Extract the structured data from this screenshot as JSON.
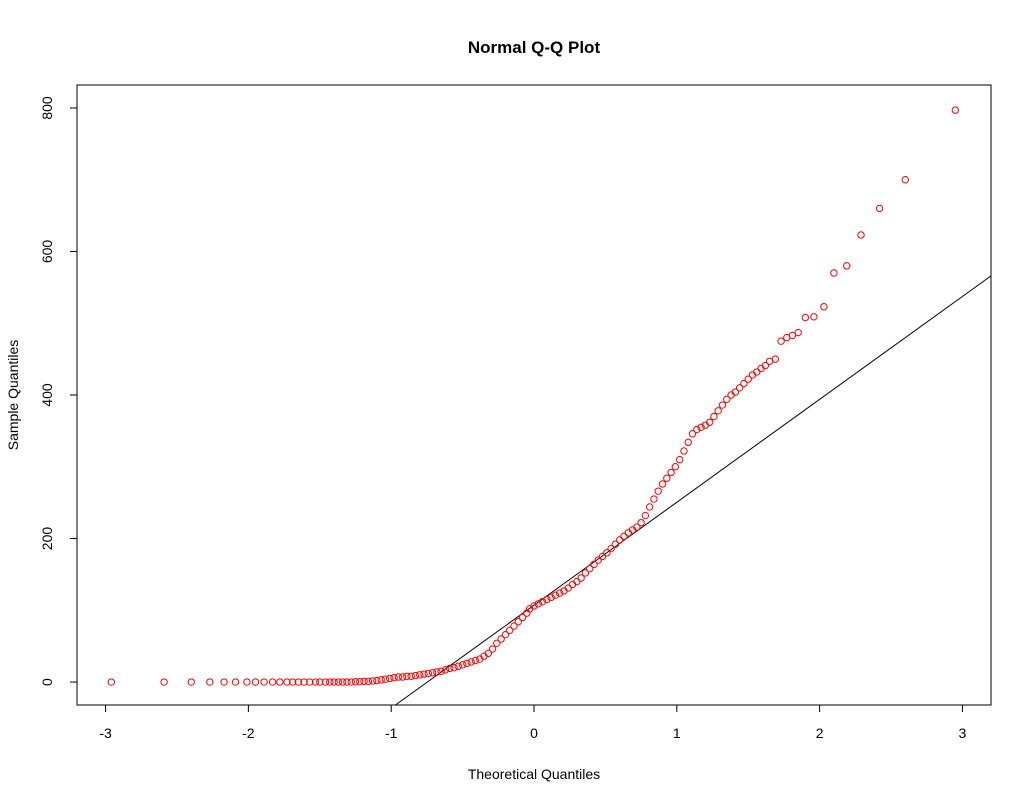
{
  "chart_data": {
    "type": "scatter",
    "title": "Normal Q-Q Plot",
    "xlabel": "Theoretical Quantiles",
    "ylabel": "Sample Quantiles",
    "xlim": [
      -3.2,
      3.2
    ],
    "ylim": [
      -32,
      832
    ],
    "xticks": [
      -3,
      -2,
      -1,
      0,
      1,
      2,
      3
    ],
    "yticks": [
      0,
      200,
      400,
      600,
      800
    ],
    "point_color": "#FF0000",
    "line_color": "#000000",
    "grid": false,
    "legend": "none",
    "reference_line": {
      "x": [
        -0.97,
        3.2
      ],
      "y": [
        -32,
        566
      ]
    },
    "series": [
      {
        "values": [
          [
            -2.96,
            0
          ],
          [
            -2.59,
            0
          ],
          [
            -2.4,
            0
          ],
          [
            -2.27,
            0
          ],
          [
            -2.17,
            0
          ],
          [
            -2.09,
            0
          ],
          [
            -2.01,
            0
          ],
          [
            -1.95,
            0
          ],
          [
            -1.89,
            0
          ],
          [
            -1.83,
            0
          ],
          [
            -1.78,
            0
          ],
          [
            -1.73,
            0
          ],
          [
            -1.69,
            0
          ],
          [
            -1.65,
            0
          ],
          [
            -1.61,
            0
          ],
          [
            -1.57,
            0
          ],
          [
            -1.53,
            0
          ],
          [
            -1.5,
            0
          ],
          [
            -1.46,
            0
          ],
          [
            -1.43,
            0
          ],
          [
            -1.4,
            0
          ],
          [
            -1.37,
            0
          ],
          [
            -1.34,
            0
          ],
          [
            -1.31,
            0
          ],
          [
            -1.28,
            0
          ],
          [
            -1.25,
            0.5
          ],
          [
            -1.22,
            0.5
          ],
          [
            -1.19,
            1
          ],
          [
            -1.16,
            1
          ],
          [
            -1.13,
            1.5
          ],
          [
            -1.1,
            2
          ],
          [
            -1.07,
            3
          ],
          [
            -1.04,
            4
          ],
          [
            -1.01,
            5
          ],
          [
            -0.98,
            6
          ],
          [
            -0.95,
            7
          ],
          [
            -0.92,
            7
          ],
          [
            -0.89,
            8
          ],
          [
            -0.86,
            8
          ],
          [
            -0.83,
            9
          ],
          [
            -0.8,
            10
          ],
          [
            -0.77,
            11
          ],
          [
            -0.74,
            12
          ],
          [
            -0.71,
            13
          ],
          [
            -0.68,
            14
          ],
          [
            -0.65,
            15
          ],
          [
            -0.62,
            17
          ],
          [
            -0.59,
            19
          ],
          [
            -0.56,
            20
          ],
          [
            -0.53,
            22
          ],
          [
            -0.5,
            24
          ],
          [
            -0.47,
            26
          ],
          [
            -0.44,
            28
          ],
          [
            -0.41,
            30
          ],
          [
            -0.38,
            32
          ],
          [
            -0.35,
            36
          ],
          [
            -0.32,
            40
          ],
          [
            -0.29,
            46
          ],
          [
            -0.26,
            54
          ],
          [
            -0.23,
            60
          ],
          [
            -0.2,
            66
          ],
          [
            -0.17,
            72
          ],
          [
            -0.14,
            78
          ],
          [
            -0.11,
            84
          ],
          [
            -0.08,
            90
          ],
          [
            -0.05,
            96
          ],
          [
            -0.03,
            102
          ],
          [
            0.0,
            106
          ],
          [
            0.03,
            109
          ],
          [
            0.06,
            112
          ],
          [
            0.09,
            115
          ],
          [
            0.12,
            118
          ],
          [
            0.15,
            121
          ],
          [
            0.18,
            124
          ],
          [
            0.21,
            127
          ],
          [
            0.24,
            131
          ],
          [
            0.27,
            136
          ],
          [
            0.3,
            140
          ],
          [
            0.33,
            145
          ],
          [
            0.36,
            152
          ],
          [
            0.39,
            158
          ],
          [
            0.42,
            164
          ],
          [
            0.45,
            170
          ],
          [
            0.48,
            175
          ],
          [
            0.51,
            180
          ],
          [
            0.54,
            186
          ],
          [
            0.57,
            192
          ],
          [
            0.6,
            198
          ],
          [
            0.63,
            203
          ],
          [
            0.66,
            208
          ],
          [
            0.69,
            212
          ],
          [
            0.72,
            216
          ],
          [
            0.75,
            222
          ],
          [
            0.78,
            232
          ],
          [
            0.81,
            244
          ],
          [
            0.84,
            255
          ],
          [
            0.87,
            266
          ],
          [
            0.9,
            276
          ],
          [
            0.93,
            284
          ],
          [
            0.96,
            292
          ],
          [
            0.99,
            300
          ],
          [
            1.02,
            310
          ],
          [
            1.05,
            322
          ],
          [
            1.08,
            334
          ],
          [
            1.11,
            346
          ],
          [
            1.14,
            352
          ],
          [
            1.17,
            355
          ],
          [
            1.2,
            358
          ],
          [
            1.23,
            362
          ],
          [
            1.26,
            370
          ],
          [
            1.29,
            378
          ],
          [
            1.32,
            386
          ],
          [
            1.35,
            394
          ],
          [
            1.38,
            400
          ],
          [
            1.41,
            404
          ],
          [
            1.44,
            410
          ],
          [
            1.47,
            416
          ],
          [
            1.5,
            422
          ],
          [
            1.53,
            428
          ],
          [
            1.56,
            432
          ],
          [
            1.59,
            437
          ],
          [
            1.62,
            441
          ],
          [
            1.65,
            447
          ],
          [
            1.69,
            450
          ],
          [
            1.73,
            475
          ],
          [
            1.77,
            480
          ],
          [
            1.81,
            483
          ],
          [
            1.85,
            487
          ],
          [
            1.9,
            508
          ],
          [
            1.96,
            509
          ],
          [
            2.03,
            523
          ],
          [
            2.1,
            570
          ],
          [
            2.19,
            580
          ],
          [
            2.29,
            623
          ],
          [
            2.42,
            660
          ],
          [
            2.6,
            700
          ],
          [
            2.95,
            797
          ]
        ]
      }
    ]
  }
}
